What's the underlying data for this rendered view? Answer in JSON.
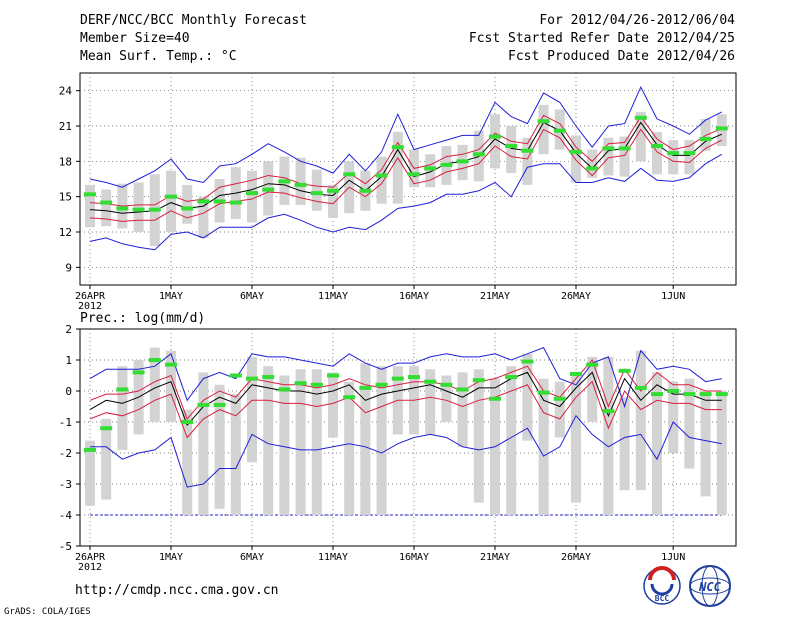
{
  "header": {
    "title": "DERF/NCC/BCC Monthly Forecast",
    "member_size": "Member Size=40",
    "variable": "Mean Surf. Temp.: °C",
    "period": "For 2012/04/26-2012/06/04",
    "refer_date": "Fcst Started Refer Date 2012/04/25",
    "produced_date": "Fcst Produced Date 2012/04/26"
  },
  "footer": {
    "url": "http://cmdp.ncc.cma.gov.cn",
    "grads_credit": "GrADS: COLA/IGES",
    "logo_bcc": "BCC",
    "logo_ncc": "NCC"
  },
  "x_axis": {
    "year_label": "2012",
    "ticks": [
      {
        "day": 0,
        "label": "26APR"
      },
      {
        "day": 5,
        "label": "1MAY"
      },
      {
        "day": 10,
        "label": "6MAY"
      },
      {
        "day": 15,
        "label": "11MAY"
      },
      {
        "day": 20,
        "label": "16MAY"
      },
      {
        "day": 25,
        "label": "21MAY"
      },
      {
        "day": 30,
        "label": "26MAY"
      },
      {
        "day": 36,
        "label": "1JUN"
      }
    ],
    "grid_days": [
      0,
      5,
      10,
      15,
      20,
      25,
      30,
      36
    ]
  },
  "colors": {
    "box": "#d3d3d3",
    "envelope": "#1f1fd8",
    "spread": "#d81f3f",
    "mean": "#000000",
    "obs": "#33dd33",
    "threshold": "#1f1fd8",
    "grid": "#555555"
  },
  "chart_data": [
    {
      "type": "box-plume",
      "title": "Mean Surf. Temp.: °C",
      "ylabel": "°C",
      "ylim": [
        7.5,
        25.5
      ],
      "yticks": [
        9,
        12,
        15,
        18,
        21,
        24
      ],
      "x": [
        0,
        1,
        2,
        3,
        4,
        5,
        6,
        7,
        8,
        9,
        10,
        11,
        12,
        13,
        14,
        15,
        16,
        17,
        18,
        19,
        20,
        21,
        22,
        23,
        24,
        25,
        26,
        27,
        28,
        29,
        30,
        31,
        32,
        33,
        34,
        35,
        36,
        37,
        38,
        39
      ],
      "box_low": [
        12.4,
        12.5,
        12.3,
        12.0,
        10.8,
        12.0,
        12.7,
        11.5,
        12.8,
        13.1,
        12.8,
        13.4,
        14.3,
        14.3,
        13.8,
        13.2,
        13.6,
        13.8,
        14.4,
        14.4,
        15.8,
        15.8,
        16.0,
        16.4,
        16.3,
        17.4,
        17.0,
        16.0,
        18.6,
        19.0,
        16.2,
        16.6,
        16.8,
        16.7,
        18.0,
        16.9,
        16.9,
        16.9,
        18.9,
        19.3
      ],
      "box_high": [
        16.0,
        15.6,
        16.1,
        16.2,
        16.9,
        17.2,
        16.0,
        15.0,
        16.5,
        17.5,
        17.2,
        18.0,
        18.4,
        18.3,
        17.3,
        16.0,
        18.0,
        17.2,
        18.4,
        20.5,
        19.0,
        18.6,
        19.3,
        19.4,
        20.6,
        22.0,
        21.0,
        20.0,
        22.8,
        22.4,
        20.2,
        19.0,
        20.0,
        20.1,
        22.2,
        20.5,
        19.8,
        19.8,
        21.6,
        22.0
      ],
      "ens_max": [
        16.5,
        16.2,
        15.8,
        16.5,
        17.2,
        18.2,
        16.5,
        16.2,
        17.6,
        17.8,
        18.6,
        19.5,
        18.8,
        18.0,
        17.6,
        17.0,
        18.6,
        17.2,
        18.8,
        22.0,
        19.0,
        19.4,
        19.8,
        20.2,
        20.2,
        23.0,
        21.8,
        21.2,
        23.8,
        23.0,
        21.0,
        19.2,
        21.0,
        21.2,
        24.3,
        21.6,
        21.0,
        20.3,
        21.5,
        22.2
      ],
      "ens_min": [
        11.2,
        11.5,
        11.0,
        10.7,
        10.5,
        11.8,
        12.0,
        11.5,
        12.4,
        12.4,
        12.4,
        13.2,
        13.5,
        13.0,
        12.4,
        12.0,
        12.4,
        12.2,
        13.0,
        14.0,
        14.2,
        14.5,
        15.2,
        15.2,
        15.5,
        16.2,
        15.0,
        17.5,
        17.8,
        17.8,
        16.2,
        16.2,
        16.6,
        16.3,
        17.4,
        16.4,
        16.3,
        16.6,
        17.8,
        18.6
      ],
      "spread_high": [
        14.5,
        14.4,
        14.2,
        14.3,
        14.3,
        15.1,
        14.6,
        14.8,
        15.8,
        16.1,
        16.4,
        16.8,
        16.6,
        16.1,
        15.9,
        15.8,
        17.0,
        16.1,
        17.3,
        19.6,
        17.4,
        17.7,
        18.4,
        18.6,
        19.0,
        20.4,
        19.7,
        19.5,
        21.9,
        21.2,
        19.2,
        18.0,
        19.5,
        19.6,
        21.8,
        19.9,
        19.0,
        19.3,
        20.2,
        20.8
      ],
      "mean": [
        13.9,
        13.8,
        13.6,
        13.7,
        13.8,
        14.5,
        14.0,
        14.2,
        15.1,
        15.3,
        15.6,
        16.1,
        16.0,
        15.5,
        15.2,
        15.1,
        16.4,
        15.5,
        16.7,
        19.0,
        16.7,
        17.1,
        17.8,
        18.0,
        18.4,
        19.9,
        19.1,
        18.9,
        21.3,
        20.6,
        18.7,
        17.4,
        18.9,
        19.1,
        21.3,
        19.4,
        18.5,
        18.5,
        19.7,
        20.3
      ],
      "spread_low": [
        13.2,
        13.1,
        12.9,
        13.0,
        13.0,
        13.8,
        13.2,
        13.6,
        14.4,
        14.6,
        14.8,
        15.4,
        15.3,
        14.9,
        14.6,
        14.4,
        15.8,
        15.0,
        16.1,
        18.3,
        16.1,
        16.4,
        17.1,
        17.4,
        17.8,
        19.3,
        18.4,
        18.2,
        20.7,
        20.0,
        18.1,
        16.8,
        18.3,
        18.5,
        20.7,
        18.8,
        18.0,
        17.9,
        19.1,
        19.8
      ],
      "obs_markers": [
        15.2,
        14.5,
        14.0,
        13.9,
        13.9,
        15.0,
        14.0,
        14.6,
        14.6,
        14.5,
        15.3,
        15.6,
        16.3,
        16.0,
        15.3,
        15.5,
        16.9,
        15.5,
        16.8,
        19.2,
        16.9,
        17.4,
        17.7,
        18.0,
        18.6,
        20.1,
        19.3,
        18.9,
        21.4,
        20.6,
        18.8,
        17.4,
        19.1,
        19.1,
        21.7,
        19.3,
        18.7,
        18.7,
        19.9,
        20.8
      ]
    },
    {
      "type": "box-plume",
      "title": "Prec.: log(mm/d)",
      "ylabel": "log(mm/d)",
      "ylim": [
        -5,
        2
      ],
      "yticks": [
        -5,
        -4,
        -3,
        -2,
        -1,
        0,
        1,
        2
      ],
      "x": [
        0,
        1,
        2,
        3,
        4,
        5,
        6,
        7,
        8,
        9,
        10,
        11,
        12,
        13,
        14,
        15,
        16,
        17,
        18,
        19,
        20,
        21,
        22,
        23,
        24,
        25,
        26,
        27,
        28,
        29,
        30,
        31,
        32,
        33,
        34,
        35,
        36,
        37,
        38,
        39
      ],
      "box_low": [
        -3.7,
        -3.5,
        -1.9,
        -1.4,
        -1.0,
        -1.0,
        -4.0,
        -4.0,
        -3.8,
        -4.0,
        -2.3,
        -4.0,
        -4.0,
        -4.0,
        -4.0,
        -1.5,
        -4.0,
        -4.0,
        -4.0,
        -1.4,
        -1.4,
        -1.4,
        -1.0,
        -1.8,
        -3.6,
        -4.0,
        -4.0,
        -1.6,
        -4.0,
        -1.5,
        -3.6,
        -1.0,
        -4.0,
        -3.2,
        -3.2,
        -4.0,
        -2.0,
        -2.5,
        -3.4,
        -4.0
      ],
      "box_high": [
        -1.6,
        -0.9,
        0.8,
        1.0,
        1.4,
        1.3,
        -0.6,
        0.6,
        0.2,
        -0.1,
        1.1,
        0.8,
        0.5,
        0.7,
        0.7,
        0.6,
        0.3,
        0.9,
        0.8,
        0.8,
        0.8,
        0.7,
        0.5,
        0.6,
        0.7,
        0.4,
        0.8,
        1.2,
        0.4,
        0.3,
        0.6,
        1.1,
        1.1,
        -0.2,
        1.3,
        0.6,
        0.3,
        0.4,
        0.0,
        0.0
      ],
      "ens_max": [
        0.4,
        0.7,
        0.7,
        0.7,
        0.8,
        1.2,
        -0.3,
        0.4,
        0.6,
        0.4,
        1.2,
        1.1,
        1.1,
        1.0,
        0.9,
        0.8,
        1.2,
        0.9,
        0.7,
        0.9,
        0.9,
        1.1,
        1.2,
        1.1,
        1.1,
        1.2,
        1.0,
        1.2,
        1.4,
        0.4,
        0.2,
        0.9,
        1.1,
        -0.5,
        1.3,
        0.7,
        0.8,
        0.7,
        0.3,
        0.4
      ],
      "spread_high": [
        -0.3,
        -0.1,
        -0.1,
        0.0,
        0.3,
        0.5,
        -0.9,
        -0.3,
        0.0,
        -0.2,
        0.4,
        0.3,
        0.2,
        0.2,
        0.1,
        0.2,
        0.4,
        0.2,
        0.1,
        0.2,
        0.3,
        0.3,
        0.2,
        0.0,
        0.3,
        0.4,
        0.6,
        0.8,
        0.0,
        -0.2,
        0.4,
        1.0,
        -0.5,
        0.7,
        0.0,
        0.6,
        0.2,
        0.2,
        0.0,
        0.0
      ],
      "mean": [
        -0.6,
        -0.3,
        -0.4,
        -0.2,
        0.1,
        0.3,
        -1.1,
        -0.5,
        -0.2,
        -0.4,
        0.2,
        0.1,
        0.0,
        0.0,
        -0.1,
        0.0,
        0.2,
        -0.3,
        -0.1,
        0.0,
        0.1,
        0.2,
        0.0,
        -0.2,
        0.1,
        0.1,
        0.4,
        0.6,
        -0.3,
        -0.5,
        0.1,
        0.6,
        -0.8,
        0.4,
        -0.3,
        0.2,
        -0.1,
        -0.1,
        -0.3,
        -0.3
      ],
      "spread_low": [
        -0.9,
        -0.7,
        -0.8,
        -0.6,
        -0.3,
        -0.1,
        -1.5,
        -0.9,
        -0.6,
        -0.8,
        -0.3,
        -0.3,
        -0.4,
        -0.4,
        -0.5,
        -0.4,
        -0.2,
        -0.7,
        -0.5,
        -0.3,
        -0.3,
        -0.2,
        -0.3,
        -0.5,
        -0.3,
        -0.2,
        0.0,
        0.2,
        -0.7,
        -0.9,
        -0.2,
        0.3,
        -1.2,
        0.0,
        -0.6,
        -0.3,
        -0.4,
        -0.4,
        -0.6,
        -0.6
      ],
      "ens_min": [
        -1.8,
        -1.8,
        -2.2,
        -2.0,
        -1.9,
        -1.5,
        -3.1,
        -3.0,
        -2.5,
        -2.5,
        -1.4,
        -1.7,
        -1.8,
        -1.9,
        -1.9,
        -1.8,
        -1.7,
        -1.8,
        -2.0,
        -1.7,
        -1.5,
        -1.4,
        -1.5,
        -1.8,
        -1.9,
        -1.8,
        -1.5,
        -1.2,
        -2.1,
        -1.8,
        -0.8,
        -1.4,
        -1.8,
        -1.5,
        -1.4,
        -2.2,
        -1.0,
        -1.5,
        -1.6,
        -1.7
      ],
      "obs_markers": [
        -1.9,
        -1.2,
        0.05,
        0.6,
        1.0,
        0.85,
        -1.0,
        -0.45,
        -0.45,
        0.5,
        0.4,
        0.45,
        0.05,
        0.25,
        0.2,
        0.5,
        -0.2,
        0.1,
        0.2,
        0.4,
        0.45,
        0.3,
        0.2,
        0.05,
        0.35,
        -0.25,
        0.45,
        0.95,
        -0.05,
        -0.25,
        0.55,
        0.85,
        -0.65,
        0.65,
        0.1,
        -0.1,
        0.0,
        -0.1,
        -0.1,
        -0.1
      ],
      "threshold": -4
    }
  ]
}
